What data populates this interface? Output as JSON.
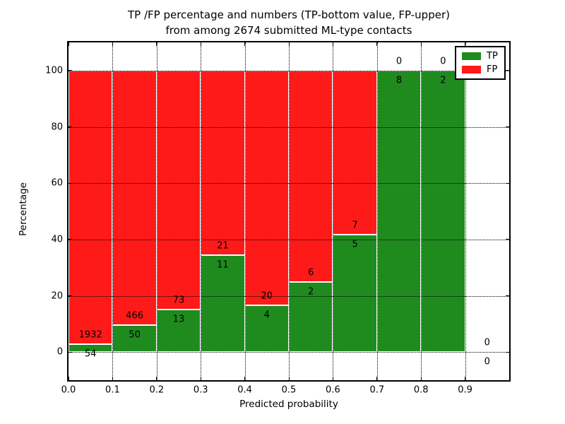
{
  "chart_data": {
    "type": "bar",
    "stacked": true,
    "orientation": "vertical",
    "title_line1": "TP /FP percentage and numbers (TP-bottom value, FP-upper)",
    "title_line2": "from among 2674 submitted ML-type contacts",
    "xlabel": "Predicted probability",
    "ylabel": "Percentage",
    "total_submitted": 2674,
    "xlim": [
      0.0,
      1.0
    ],
    "ylim": [
      -10,
      110
    ],
    "x_tick_labels": [
      "0.0",
      "0.1",
      "0.2",
      "0.3",
      "0.4",
      "0.5",
      "0.6",
      "0.7",
      "0.8",
      "0.9"
    ],
    "y_tick_labels": [
      "0",
      "20",
      "40",
      "60",
      "80",
      "100"
    ],
    "grid": "dotted",
    "legend_position": "upper-right",
    "series_colors": {
      "tp": "#1f8b1f",
      "fp": "#ff1a1a"
    },
    "legend": [
      {
        "name": "TP",
        "color_key": "tp"
      },
      {
        "name": "FP",
        "color_key": "fp"
      }
    ],
    "bins": [
      {
        "range": [
          0.0,
          0.1
        ],
        "tp_count": 54,
        "fp_count": 1932,
        "tp_pct": 2.72
      },
      {
        "range": [
          0.1,
          0.2
        ],
        "tp_count": 50,
        "fp_count": 466,
        "tp_pct": 9.69
      },
      {
        "range": [
          0.2,
          0.3
        ],
        "tp_count": 13,
        "fp_count": 73,
        "tp_pct": 15.12
      },
      {
        "range": [
          0.3,
          0.4
        ],
        "tp_count": 11,
        "fp_count": 21,
        "tp_pct": 34.38
      },
      {
        "range": [
          0.4,
          0.5
        ],
        "tp_count": 4,
        "fp_count": 20,
        "tp_pct": 16.67
      },
      {
        "range": [
          0.5,
          0.6
        ],
        "tp_count": 2,
        "fp_count": 6,
        "tp_pct": 25.0
      },
      {
        "range": [
          0.6,
          0.7
        ],
        "tp_count": 5,
        "fp_count": 7,
        "tp_pct": 41.67
      },
      {
        "range": [
          0.7,
          0.8
        ],
        "tp_count": 8,
        "fp_count": 0,
        "tp_pct": 100.0
      },
      {
        "range": [
          0.8,
          0.9
        ],
        "tp_count": 2,
        "fp_count": 0,
        "tp_pct": 100.0
      },
      {
        "range": [
          0.9,
          1.0
        ],
        "tp_count": 0,
        "fp_count": 0,
        "tp_pct": 0.0
      }
    ]
  }
}
